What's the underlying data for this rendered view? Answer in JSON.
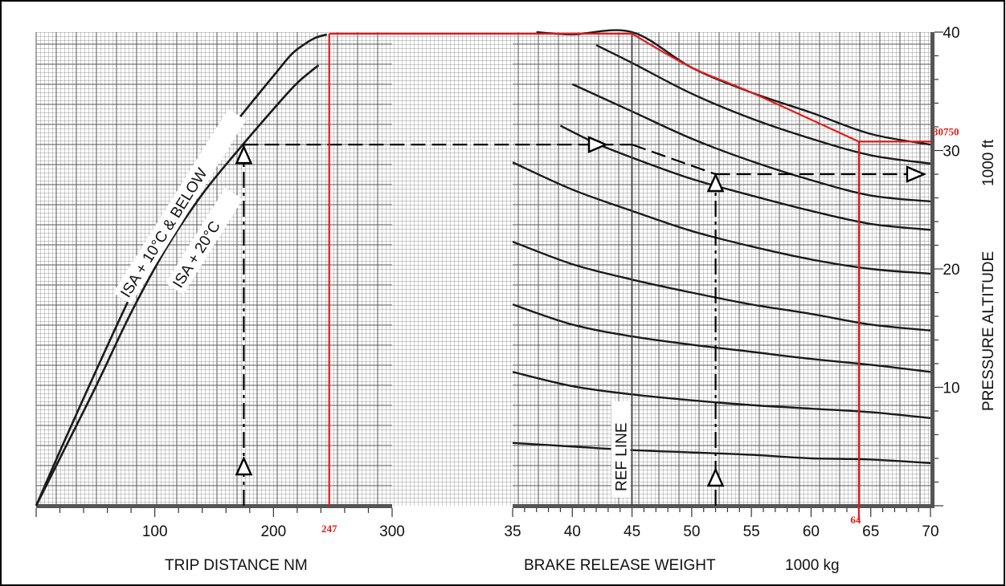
{
  "chart_data": {
    "type": "line",
    "title": "",
    "trip_distance_axis": {
      "label": "TRIP DISTANCE  NM",
      "ticks": [
        100,
        200,
        300
      ],
      "range": [
        0,
        300
      ]
    },
    "weight_axis": {
      "label": "BRAKE RELEASE WEIGHT",
      "unit": "1000 kg",
      "ticks": [
        35,
        40,
        45,
        50,
        55,
        60,
        65,
        70
      ],
      "range": [
        35,
        70
      ],
      "ref_line_label": "REF LINE",
      "ref_line_x": 45
    },
    "altitude_axis": {
      "label": "PRESSURE ALTITUDE",
      "unit": "1000 ft",
      "ticks": [
        10,
        20,
        30,
        40
      ],
      "range": [
        0,
        40
      ]
    },
    "distance_curves": [
      {
        "name": "ISA + 10°C & BELOW",
        "points": [
          [
            0,
            0
          ],
          [
            20,
            4.6
          ],
          [
            50,
            11.3
          ],
          [
            80,
            17.8
          ],
          [
            110,
            23.8
          ],
          [
            140,
            28.6
          ],
          [
            170,
            32.6
          ],
          [
            200,
            36.3
          ],
          [
            215,
            38.1
          ],
          [
            225,
            38.9
          ],
          [
            235,
            39.5
          ],
          [
            245,
            39.8
          ]
        ]
      },
      {
        "name": "ISA + 20°C",
        "points": [
          [
            0,
            0
          ],
          [
            20,
            4.0
          ],
          [
            50,
            10.0
          ],
          [
            80,
            16.3
          ],
          [
            110,
            21.8
          ],
          [
            140,
            26.3
          ],
          [
            170,
            30.0
          ],
          [
            200,
            33.5
          ],
          [
            220,
            35.7
          ],
          [
            238,
            37.2
          ]
        ]
      }
    ],
    "weight_curves": [
      {
        "points": [
          [
            35,
            5.3
          ],
          [
            40,
            5.0
          ],
          [
            45,
            4.7
          ],
          [
            50,
            4.5
          ],
          [
            55,
            4.3
          ],
          [
            60,
            4.0
          ],
          [
            65,
            3.9
          ],
          [
            70,
            3.6
          ]
        ]
      },
      {
        "points": [
          [
            35,
            11.3
          ],
          [
            40,
            10.1
          ],
          [
            45,
            9.4
          ],
          [
            50,
            8.9
          ],
          [
            55,
            8.5
          ],
          [
            60,
            8.2
          ],
          [
            65,
            7.9
          ],
          [
            70,
            7.4
          ]
        ]
      },
      {
        "points": [
          [
            35,
            17.0
          ],
          [
            40,
            15.3
          ],
          [
            45,
            14.3
          ],
          [
            50,
            13.6
          ],
          [
            55,
            13.0
          ],
          [
            60,
            12.4
          ],
          [
            65,
            11.9
          ],
          [
            70,
            11.3
          ]
        ]
      },
      {
        "points": [
          [
            35,
            22.3
          ],
          [
            40,
            20.4
          ],
          [
            45,
            19.1
          ],
          [
            50,
            18.0
          ],
          [
            55,
            17.0
          ],
          [
            60,
            16.2
          ],
          [
            65,
            15.3
          ],
          [
            70,
            14.8
          ]
        ]
      },
      {
        "points": [
          [
            35,
            29.0
          ],
          [
            40,
            26.7
          ],
          [
            45,
            24.9
          ],
          [
            50,
            23.2
          ],
          [
            55,
            21.9
          ],
          [
            60,
            20.8
          ],
          [
            65,
            20.0
          ],
          [
            70,
            19.6
          ]
        ]
      },
      {
        "points": [
          [
            39,
            32.1
          ],
          [
            42,
            30.6
          ],
          [
            45,
            29.4
          ],
          [
            50,
            27.6
          ],
          [
            55,
            26.2
          ],
          [
            60,
            24.9
          ],
          [
            65,
            23.8
          ],
          [
            70,
            23.3
          ]
        ]
      },
      {
        "points": [
          [
            40,
            35.6
          ],
          [
            45,
            33.3
          ],
          [
            50,
            31.0
          ],
          [
            55,
            29.1
          ],
          [
            60,
            27.5
          ],
          [
            65,
            26.2
          ],
          [
            70,
            25.7
          ]
        ]
      },
      {
        "points": [
          [
            42,
            38.9
          ],
          [
            45,
            37.4
          ],
          [
            50,
            34.8
          ],
          [
            55,
            32.7
          ],
          [
            60,
            31.0
          ],
          [
            65,
            29.6
          ],
          [
            70,
            28.9
          ]
        ]
      },
      {
        "points": [
          [
            37,
            40.0
          ],
          [
            40,
            39.8
          ],
          [
            45,
            40.0
          ],
          [
            50,
            37.0
          ],
          [
            55,
            34.9
          ],
          [
            60,
            33.2
          ],
          [
            65,
            31.4
          ],
          [
            70,
            30.5
          ]
        ]
      }
    ],
    "example_dashed": {
      "trip_distance": 175,
      "altitude_from_distance": 30.5,
      "weight": 52,
      "altitude_result": 28
    },
    "red_overlay": {
      "trip_distance": 247,
      "weight": 64,
      "altitude": 30750,
      "labels": {
        "distance": "247",
        "weight": "64",
        "altitude": "30750"
      }
    }
  }
}
